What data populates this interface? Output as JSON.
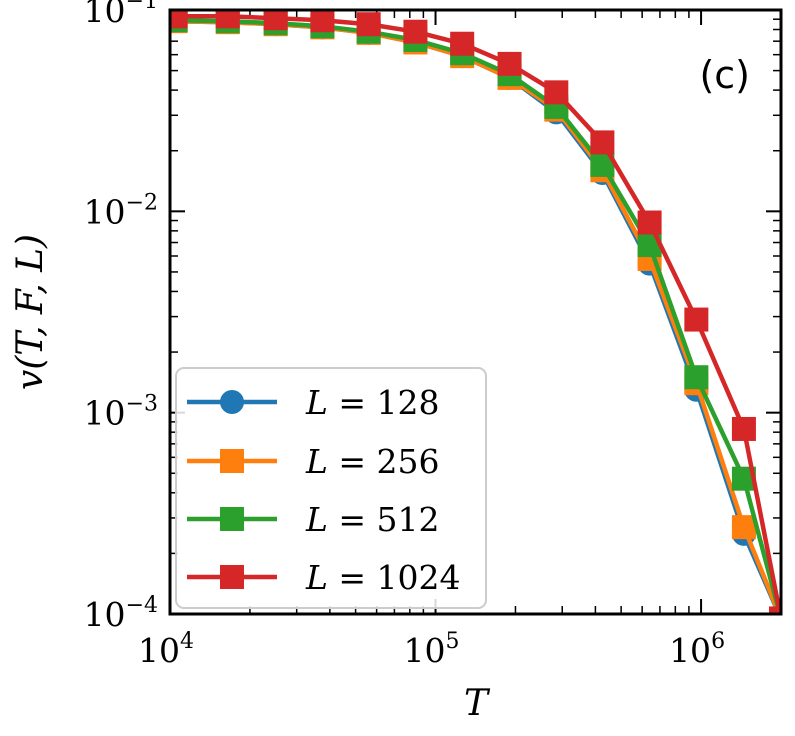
{
  "chart_data": {
    "type": "line",
    "xlabel": "T",
    "ylabel": "v(T, F, L)",
    "panel_label": "(c)",
    "x_scale": "log",
    "y_scale": "log",
    "xlim": [
      10000,
      2000000
    ],
    "ylim": [
      0.0001,
      0.1
    ],
    "x_ticks": [
      {
        "value": 10000,
        "base": "10",
        "exp": "4"
      },
      {
        "value": 100000,
        "base": "10",
        "exp": "5"
      },
      {
        "value": 1000000,
        "base": "10",
        "exp": "6"
      }
    ],
    "y_ticks": [
      {
        "value": 0.1,
        "base": "10",
        "exp": "−1"
      },
      {
        "value": 0.01,
        "base": "10",
        "exp": "−2"
      },
      {
        "value": 0.001,
        "base": "10",
        "exp": "−3"
      },
      {
        "value": 0.0001,
        "base": "10",
        "exp": "−4"
      }
    ],
    "grid": false,
    "legend_position": "bottom-left",
    "x": [
      10500,
      16500,
      25000,
      37500,
      56000,
      84000,
      126000,
      190000,
      285000,
      425000,
      640000,
      960000,
      1450000,
      2000000
    ],
    "series": [
      {
        "name": "L = 128",
        "legend_var": "L",
        "legend_value": "128",
        "marker": "circle",
        "color": "#1f77b4",
        "values": [
          0.088,
          0.087,
          0.085,
          0.082,
          0.077,
          0.069,
          0.059,
          0.046,
          0.031,
          0.0155,
          0.0055,
          0.0013,
          0.00025,
          9.5e-05
        ]
      },
      {
        "name": "L = 256",
        "legend_var": "L",
        "legend_value": "256",
        "marker": "square",
        "color": "#ff7f0e",
        "values": [
          0.088,
          0.087,
          0.085,
          0.082,
          0.077,
          0.069,
          0.059,
          0.046,
          0.032,
          0.016,
          0.0058,
          0.0014,
          0.00027,
          9.5e-05
        ]
      },
      {
        "name": "L = 512",
        "legend_var": "L",
        "legend_value": "512",
        "marker": "square",
        "color": "#2ca02c",
        "values": [
          0.089,
          0.088,
          0.086,
          0.083,
          0.078,
          0.071,
          0.061,
          0.048,
          0.033,
          0.017,
          0.0068,
          0.0015,
          0.00047,
          9.5e-05
        ]
      },
      {
        "name": "L = 1024",
        "legend_var": "L",
        "legend_value": "1024",
        "marker": "square",
        "color": "#d62728",
        "values": [
          0.093,
          0.093,
          0.091,
          0.089,
          0.085,
          0.078,
          0.068,
          0.054,
          0.039,
          0.022,
          0.0088,
          0.0029,
          0.00083,
          9.5e-05
        ]
      }
    ]
  }
}
